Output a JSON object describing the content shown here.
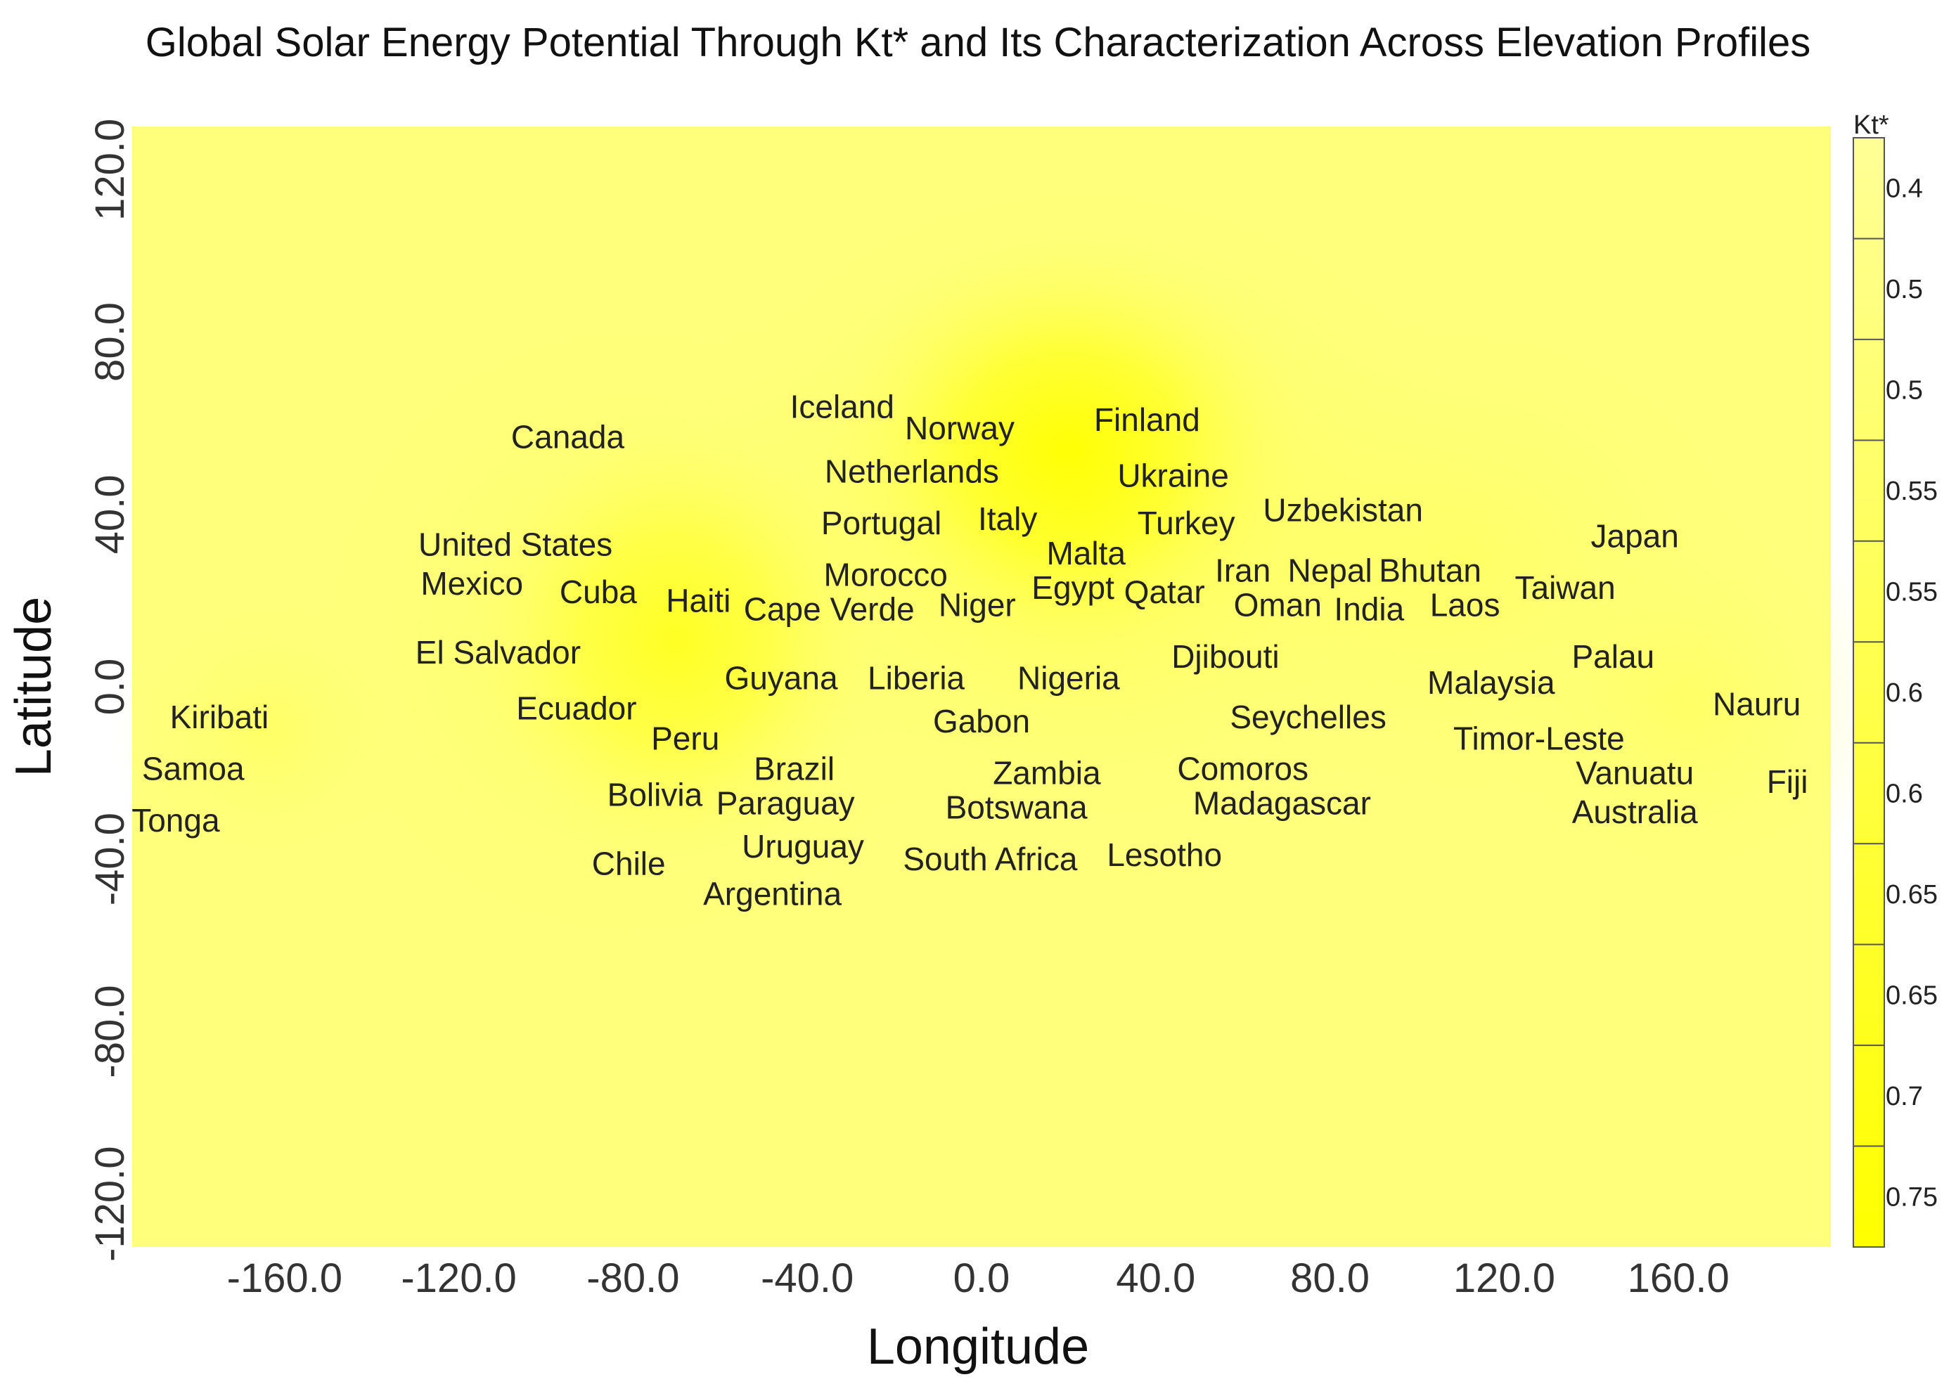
{
  "chart_data": {
    "type": "heatmap",
    "title": "Global Solar Energy Potential Through Kt* and Its Characterization Across Elevation Profiles",
    "xlabel": "Longitude",
    "ylabel": "Latitude",
    "xlim": [
      -195,
      195
    ],
    "ylim": [
      -130,
      130
    ],
    "x_ticks": [
      -160,
      -120,
      -80,
      -40,
      0,
      40,
      80,
      120,
      160
    ],
    "x_tick_labels": [
      "-160.0",
      "-120.0",
      "-80.0",
      "-40.0",
      "0.0",
      "40.0",
      "80.0",
      "120.0",
      "160.0"
    ],
    "y_ticks": [
      120,
      80,
      40,
      0,
      -40,
      -80,
      -120
    ],
    "y_tick_labels": [
      "120.0",
      "80.0",
      "40.0",
      "0.0",
      "-40.0",
      "-80.0",
      "-120.0"
    ],
    "legend": {
      "title": "Kt*",
      "position": "right",
      "labels": [
        "0.4",
        "0.5",
        "0.5",
        "0.55",
        "0.55",
        "0.6",
        "0.6",
        "0.65",
        "0.65",
        "0.7",
        "0.75"
      ]
    },
    "colors": {
      "background": "#ffff7c",
      "hot": "#ffff00",
      "text": "#222222"
    },
    "points": [
      {
        "name": "Iceland",
        "x": -32,
        "y": 65
      },
      {
        "name": "Norway",
        "x": -5,
        "y": 60
      },
      {
        "name": "Finland",
        "x": 38,
        "y": 62
      },
      {
        "name": "Canada",
        "x": -95,
        "y": 58
      },
      {
        "name": "Netherlands",
        "x": -16,
        "y": 50
      },
      {
        "name": "Ukraine",
        "x": 44,
        "y": 49
      },
      {
        "name": "Portugal",
        "x": -23,
        "y": 38
      },
      {
        "name": "Italy",
        "x": 6,
        "y": 39
      },
      {
        "name": "Uzbekistan",
        "x": 83,
        "y": 41
      },
      {
        "name": "Turkey",
        "x": 47,
        "y": 38
      },
      {
        "name": "United States",
        "x": -107,
        "y": 33
      },
      {
        "name": "Japan",
        "x": 150,
        "y": 35
      },
      {
        "name": "Malta",
        "x": 24,
        "y": 31
      },
      {
        "name": "Morocco",
        "x": -22,
        "y": 26
      },
      {
        "name": "Iran",
        "x": 60,
        "y": 27
      },
      {
        "name": "Nepal",
        "x": 80,
        "y": 27
      },
      {
        "name": "Bhutan",
        "x": 103,
        "y": 27
      },
      {
        "name": "Mexico",
        "x": -117,
        "y": 24
      },
      {
        "name": "Taiwan",
        "x": 134,
        "y": 23
      },
      {
        "name": "Egypt",
        "x": 21,
        "y": 23
      },
      {
        "name": "Cuba",
        "x": -88,
        "y": 22
      },
      {
        "name": "Qatar",
        "x": 42,
        "y": 22
      },
      {
        "name": "Haiti",
        "x": -65,
        "y": 20
      },
      {
        "name": "Niger",
        "x": -1,
        "y": 19
      },
      {
        "name": "Cape Verde",
        "x": -35,
        "y": 18
      },
      {
        "name": "Oman",
        "x": 68,
        "y": 19
      },
      {
        "name": "India",
        "x": 89,
        "y": 18
      },
      {
        "name": "Laos",
        "x": 111,
        "y": 19
      },
      {
        "name": "El Salvador",
        "x": -111,
        "y": 8
      },
      {
        "name": "Djibouti",
        "x": 56,
        "y": 7
      },
      {
        "name": "Palau",
        "x": 145,
        "y": 7
      },
      {
        "name": "Guyana",
        "x": -46,
        "y": 2
      },
      {
        "name": "Liberia",
        "x": -15,
        "y": 2
      },
      {
        "name": "Nigeria",
        "x": 20,
        "y": 2
      },
      {
        "name": "Malaysia",
        "x": 117,
        "y": 1
      },
      {
        "name": "Nauru",
        "x": 178,
        "y": -4
      },
      {
        "name": "Kiribati",
        "x": -175,
        "y": -7
      },
      {
        "name": "Ecuador",
        "x": -93,
        "y": -5
      },
      {
        "name": "Gabon",
        "x": 0,
        "y": -8
      },
      {
        "name": "Seychelles",
        "x": 75,
        "y": -7
      },
      {
        "name": "Peru",
        "x": -68,
        "y": -12
      },
      {
        "name": "Timor-Leste",
        "x": 128,
        "y": -12
      },
      {
        "name": "Samoa",
        "x": -181,
        "y": -19
      },
      {
        "name": "Brazil",
        "x": -43,
        "y": -19
      },
      {
        "name": "Zambia",
        "x": 15,
        "y": -20
      },
      {
        "name": "Comoros",
        "x": 60,
        "y": -19
      },
      {
        "name": "Vanuatu",
        "x": 150,
        "y": -20
      },
      {
        "name": "Fiji",
        "x": 185,
        "y": -22
      },
      {
        "name": "Bolivia",
        "x": -75,
        "y": -25
      },
      {
        "name": "Paraguay",
        "x": -45,
        "y": -27
      },
      {
        "name": "Botswana",
        "x": 8,
        "y": -28
      },
      {
        "name": "Madagascar",
        "x": 69,
        "y": -27
      },
      {
        "name": "Australia",
        "x": 150,
        "y": -29
      },
      {
        "name": "Tonga",
        "x": -185,
        "y": -31
      },
      {
        "name": "Uruguay",
        "x": -41,
        "y": -37
      },
      {
        "name": "South Africa",
        "x": 2,
        "y": -40
      },
      {
        "name": "Lesotho",
        "x": 42,
        "y": -39
      },
      {
        "name": "Chile",
        "x": -81,
        "y": -41
      },
      {
        "name": "Argentina",
        "x": -48,
        "y": -48
      }
    ]
  }
}
